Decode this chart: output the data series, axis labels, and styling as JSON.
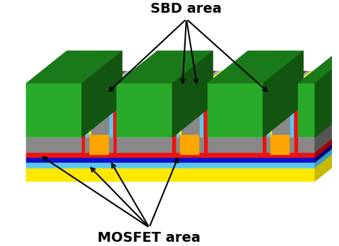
{
  "sbd_label": "SBD area",
  "mosfet_label": "MOSFET area",
  "bg_color": "#ffffff",
  "figsize": [
    4.8,
    3.48
  ],
  "dpi": 100,
  "colors": {
    "yellow": "#FFE800",
    "yellow_dark": "#C8B800",
    "cyan": "#5BC8F0",
    "cyan_dark": "#3A9EC0",
    "blue": "#1010CC",
    "blue_dark": "#00007A",
    "red": "#EE1111",
    "red_dark": "#AA0000",
    "gray": "#888888",
    "gray_dark": "#555555",
    "gray_light": "#AAAAAA",
    "green": "#2AAA2A",
    "green_top": "#1A7A1A",
    "green_dark": "#115511",
    "orange": "#FFA500",
    "orange_dark": "#CC8000",
    "green_thin": "#229922"
  }
}
